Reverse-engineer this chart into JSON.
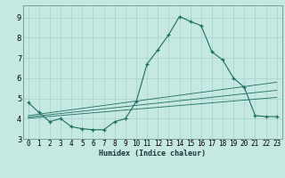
{
  "xlabel": "Humidex (Indice chaleur)",
  "xlim": [
    -0.5,
    23.5
  ],
  "ylim": [
    3,
    9.6
  ],
  "yticks": [
    3,
    4,
    5,
    6,
    7,
    8,
    9
  ],
  "xticks": [
    0,
    1,
    2,
    3,
    4,
    5,
    6,
    7,
    8,
    9,
    10,
    11,
    12,
    13,
    14,
    15,
    16,
    17,
    18,
    19,
    20,
    21,
    22,
    23
  ],
  "xtick_labels": [
    "0",
    "1",
    "2",
    "3",
    "4",
    "5",
    "6",
    "7",
    "8",
    "9",
    "10",
    "11",
    "12",
    "13",
    "14",
    "15",
    "16",
    "17",
    "18",
    "19",
    "20",
    "21",
    "22",
    "23"
  ],
  "background_color": "#c5e8e2",
  "grid_color": "#a8d0cc",
  "line_color": "#1e6e5c",
  "main_x": [
    0,
    1,
    2,
    3,
    4,
    5,
    6,
    7,
    8,
    9,
    10,
    11,
    12,
    13,
    14,
    15,
    16,
    17,
    18,
    19,
    20,
    21,
    22,
    23
  ],
  "main_y": [
    4.8,
    4.3,
    3.85,
    4.0,
    3.6,
    3.5,
    3.45,
    3.45,
    3.85,
    4.0,
    4.85,
    6.7,
    7.4,
    8.15,
    9.05,
    8.8,
    8.6,
    7.3,
    6.9,
    6.0,
    5.55,
    4.15,
    4.1,
    4.1
  ],
  "trend1_x": [
    0,
    23
  ],
  "trend1_y": [
    4.15,
    5.8
  ],
  "trend2_x": [
    0,
    23
  ],
  "trend2_y": [
    4.08,
    5.4
  ],
  "trend3_x": [
    0,
    23
  ],
  "trend3_y": [
    4.02,
    5.05
  ],
  "xlabel_fontsize": 6.0,
  "tick_fontsize": 5.5
}
